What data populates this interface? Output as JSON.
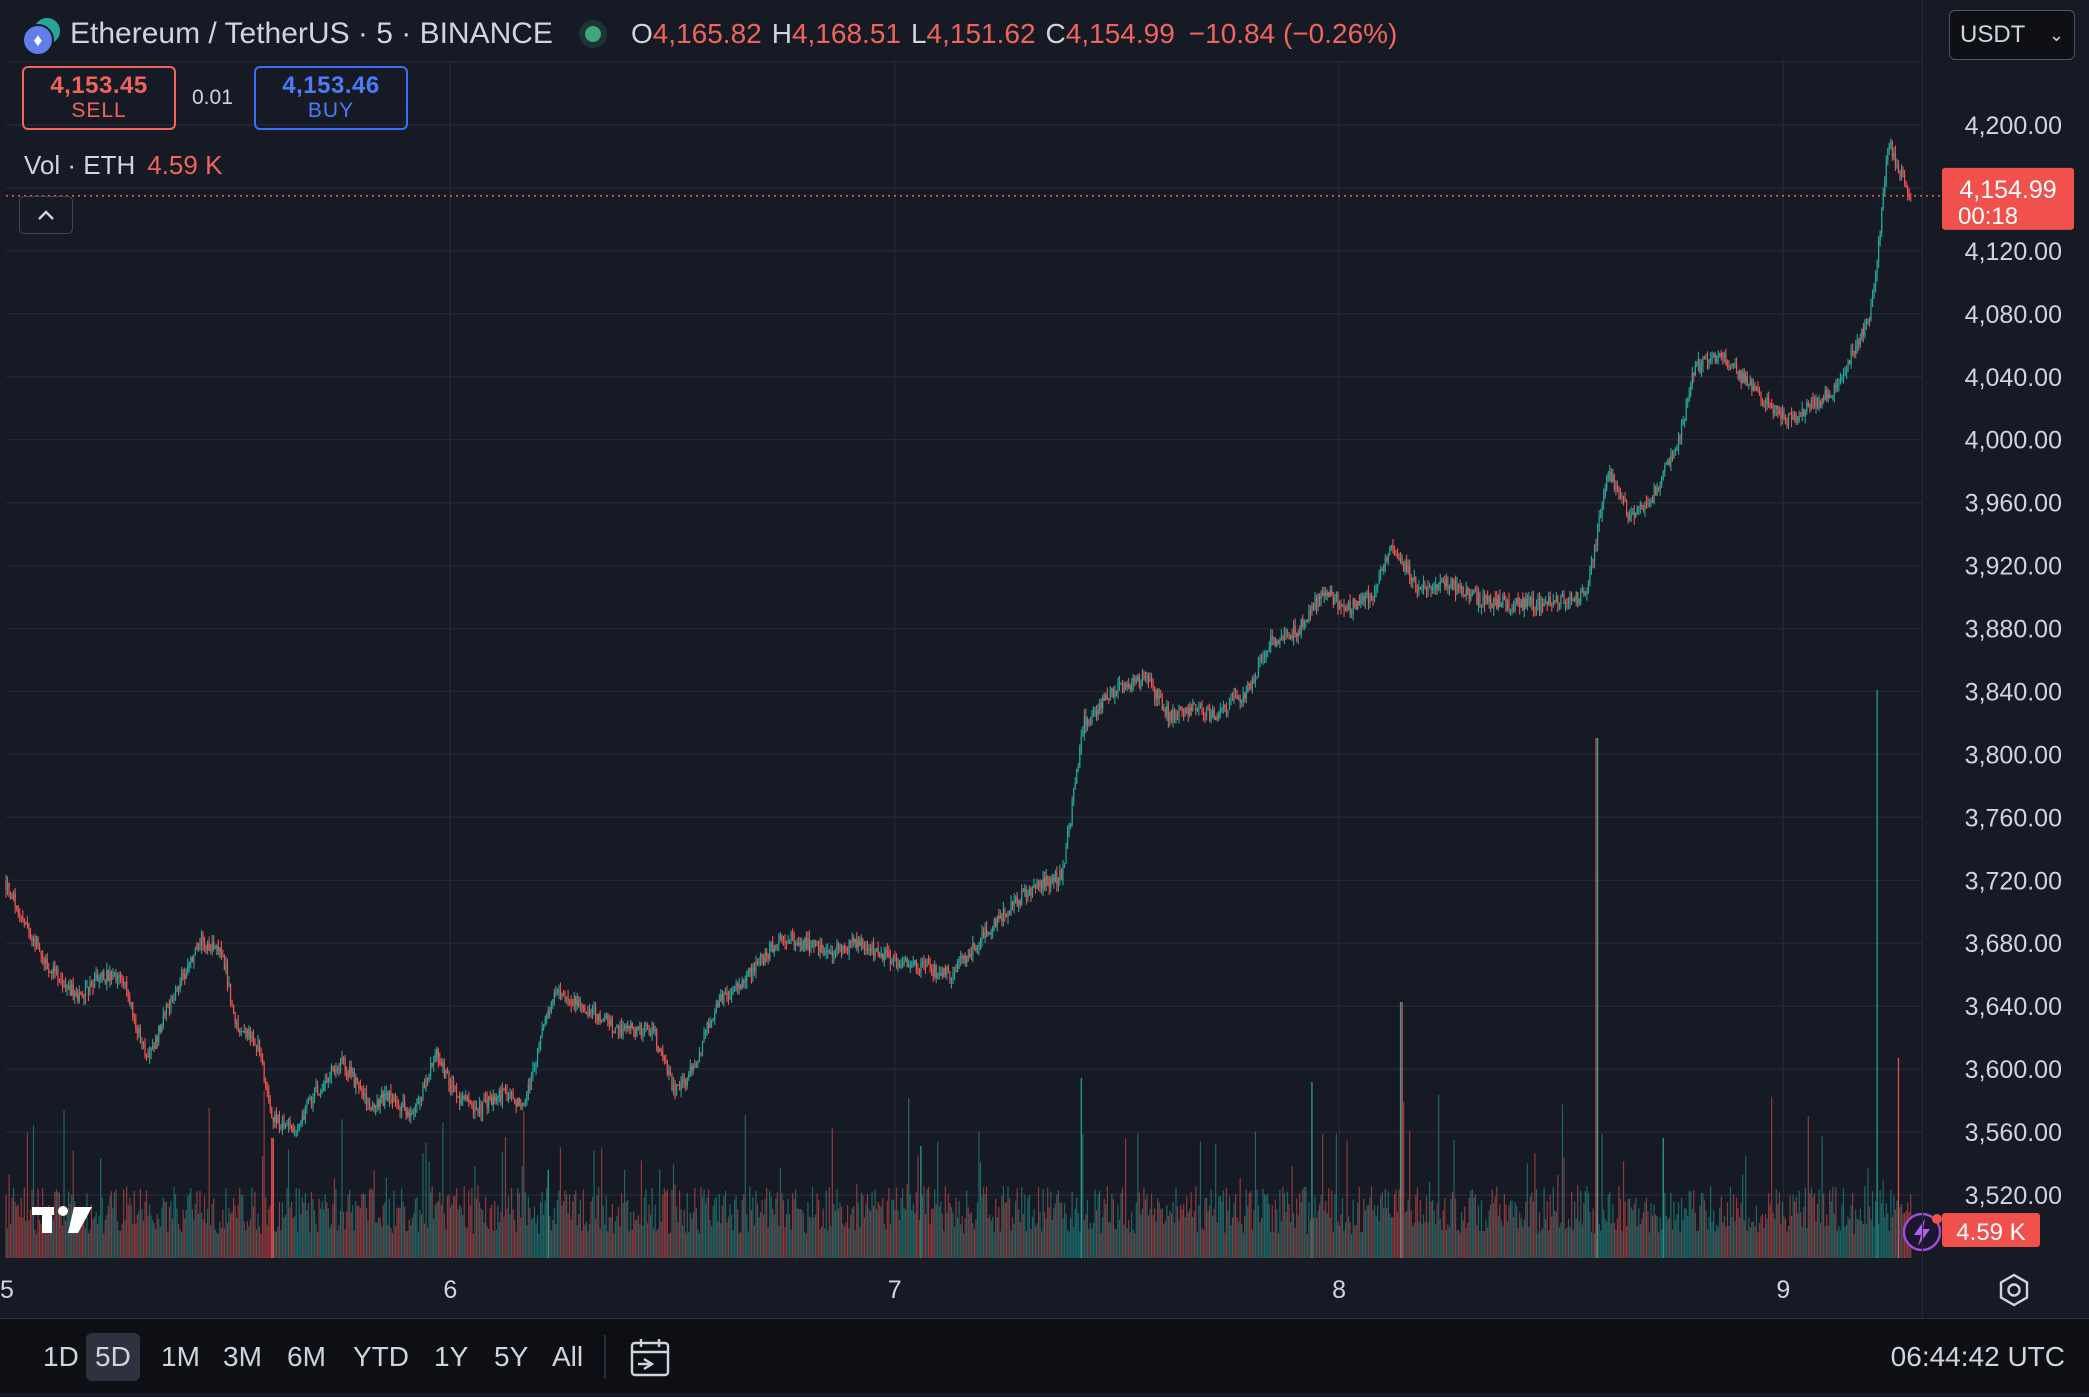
{
  "header": {
    "symbol_title": "Ethereum / TetherUS · 5 · BINANCE",
    "ohlc": [
      {
        "key": "O",
        "value": "4,165.82"
      },
      {
        "key": "H",
        "value": "4,168.51"
      },
      {
        "key": "L",
        "value": "4,151.62"
      },
      {
        "key": "C",
        "value": "4,154.99"
      }
    ],
    "change": "−10.84 (−0.26%)",
    "currency": "USDT"
  },
  "trade": {
    "sell_price": "4,153.45",
    "sell_label": "SELL",
    "spread": "0.01",
    "buy_price": "4,153.46",
    "buy_label": "BUY"
  },
  "volume_legend": {
    "label": "Vol · ETH",
    "value": "4.59 K"
  },
  "price_badge": {
    "price": "4,154.99",
    "countdown": "00:18"
  },
  "volume_badge": "4.59 K",
  "bottom_bar": {
    "ranges": [
      "1D",
      "5D",
      "1M",
      "3M",
      "6M",
      "YTD",
      "1Y",
      "5Y",
      "All"
    ],
    "active_range": "5D",
    "clock": "06:44:42 UTC"
  },
  "colors": {
    "background": "#161a25",
    "up": "#26a69a",
    "down": "#ef5350",
    "grid": "#232733",
    "sell": "#f0645c",
    "buy": "#3d6ef7"
  },
  "chart_data": {
    "type": "candlestick",
    "symbol": "ETHUSDT",
    "interval": "5",
    "y_ticks": [
      3520,
      3560,
      3600,
      3640,
      3680,
      3720,
      3760,
      3800,
      3840,
      3880,
      3920,
      3960,
      4000,
      4040,
      4080,
      4120,
      4200
    ],
    "y_tick_labels": [
      "3,520.00",
      "3,560.00",
      "3,600.00",
      "3,640.00",
      "3,680.00",
      "3,720.00",
      "3,760.00",
      "3,800.00",
      "3,840.00",
      "3,880.00",
      "3,920.00",
      "3,960.00",
      "4,000.00",
      "4,040.00",
      "4,080.00",
      "4,120.00",
      "4,200.00"
    ],
    "x_ticks": [
      5,
      6,
      7,
      8,
      9
    ],
    "x_tick_labels": [
      "5",
      "6",
      "7",
      "8",
      "9"
    ],
    "ylim": [
      3510,
      4240
    ],
    "xlim": [
      5.0,
      9.33
    ],
    "last_price": 4154.99,
    "path": [
      [
        5.0,
        3720
      ],
      [
        5.05,
        3690
      ],
      [
        5.1,
        3665
      ],
      [
        5.17,
        3645
      ],
      [
        5.22,
        3660
      ],
      [
        5.27,
        3655
      ],
      [
        5.32,
        3605
      ],
      [
        5.37,
        3640
      ],
      [
        5.44,
        3682
      ],
      [
        5.49,
        3675
      ],
      [
        5.52,
        3630
      ],
      [
        5.57,
        3615
      ],
      [
        5.6,
        3570
      ],
      [
        5.65,
        3560
      ],
      [
        5.7,
        3585
      ],
      [
        5.76,
        3605
      ],
      [
        5.82,
        3578
      ],
      [
        5.87,
        3582
      ],
      [
        5.92,
        3570
      ],
      [
        5.97,
        3610
      ],
      [
        6.02,
        3580
      ],
      [
        6.07,
        3575
      ],
      [
        6.12,
        3585
      ],
      [
        6.17,
        3575
      ],
      [
        6.21,
        3625
      ],
      [
        6.24,
        3650
      ],
      [
        6.3,
        3640
      ],
      [
        6.38,
        3625
      ],
      [
        6.46,
        3625
      ],
      [
        6.51,
        3585
      ],
      [
        6.55,
        3600
      ],
      [
        6.6,
        3640
      ],
      [
        6.66,
        3655
      ],
      [
        6.75,
        3685
      ],
      [
        6.85,
        3675
      ],
      [
        6.92,
        3680
      ],
      [
        7.0,
        3670
      ],
      [
        7.06,
        3665
      ],
      [
        7.13,
        3660
      ],
      [
        7.22,
        3690
      ],
      [
        7.31,
        3715
      ],
      [
        7.38,
        3723
      ],
      [
        7.43,
        3820
      ],
      [
        7.5,
        3840
      ],
      [
        7.57,
        3848
      ],
      [
        7.62,
        3825
      ],
      [
        7.67,
        3830
      ],
      [
        7.73,
        3825
      ],
      [
        7.8,
        3842
      ],
      [
        7.85,
        3872
      ],
      [
        7.91,
        3878
      ],
      [
        7.97,
        3905
      ],
      [
        8.02,
        3892
      ],
      [
        8.08,
        3902
      ],
      [
        8.12,
        3935
      ],
      [
        8.18,
        3905
      ],
      [
        8.25,
        3908
      ],
      [
        8.32,
        3898
      ],
      [
        8.42,
        3895
      ],
      [
        8.48,
        3896
      ],
      [
        8.56,
        3902
      ],
      [
        8.61,
        3980
      ],
      [
        8.66,
        3950
      ],
      [
        8.71,
        3965
      ],
      [
        8.77,
        4000
      ],
      [
        8.8,
        4045
      ],
      [
        8.86,
        4055
      ],
      [
        8.91,
        4040
      ],
      [
        8.96,
        4025
      ],
      [
        9.01,
        4013
      ],
      [
        9.06,
        4020
      ],
      [
        9.11,
        4030
      ],
      [
        9.16,
        4055
      ],
      [
        9.2,
        4080
      ],
      [
        9.22,
        4130
      ],
      [
        9.24,
        4190
      ],
      [
        9.26,
        4175
      ],
      [
        9.28,
        4160
      ],
      [
        9.29,
        4155
      ]
    ],
    "volume": {
      "baseline_label": "Vol · ETH",
      "spikes": [
        [
          5.6,
          0.3
        ],
        [
          6.22,
          0.22
        ],
        [
          7.06,
          0.28
        ],
        [
          7.42,
          0.45
        ],
        [
          7.94,
          0.44
        ],
        [
          8.14,
          0.64
        ],
        [
          8.58,
          1.3
        ],
        [
          8.73,
          0.3
        ],
        [
          9.21,
          1.42
        ],
        [
          9.26,
          0.5
        ]
      ]
    }
  }
}
